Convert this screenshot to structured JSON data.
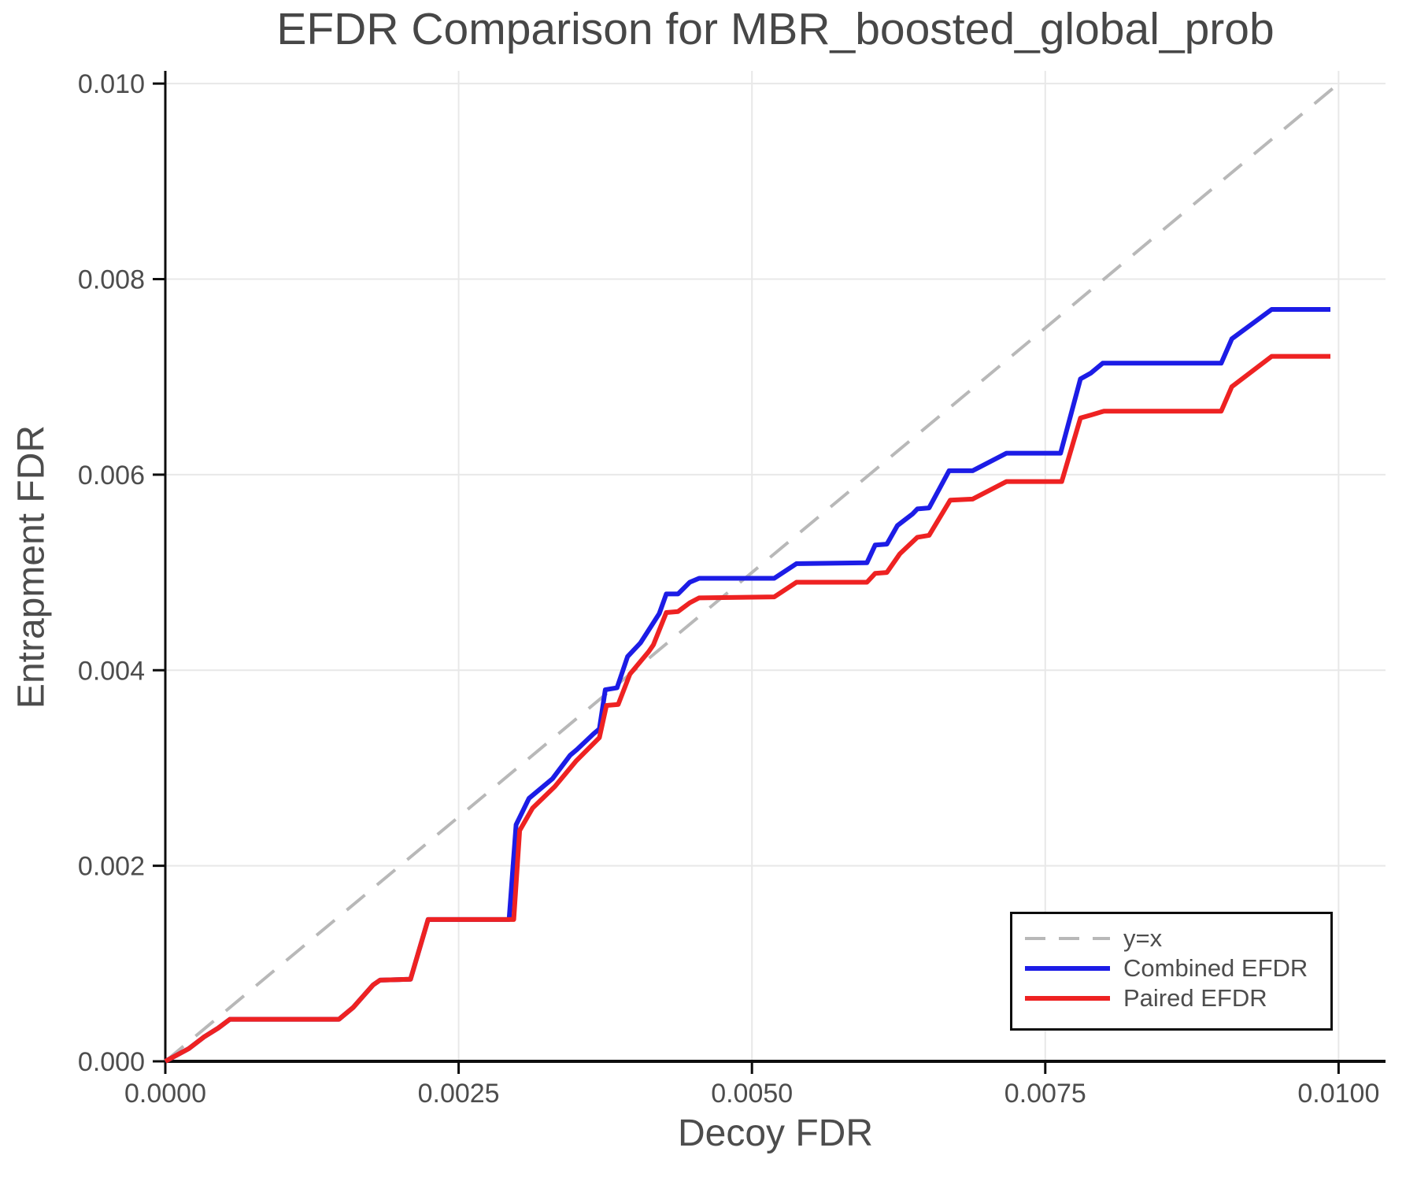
{
  "figure": {
    "title": "EFDR Comparison for MBR_boosted_global_prob",
    "x_axis_label": "Decoy FDR",
    "y_axis_label": "Entrapment FDR"
  },
  "colors": {
    "combined_efdr": "#1c1ce6",
    "paired_efdr": "#ee2222",
    "identity_line": "#b8b8b8",
    "grid": "#e8e8e8",
    "axis": "#0d0d0d",
    "text": "#4d4d4d"
  },
  "legend": {
    "entries": [
      {
        "label": "y=x",
        "color": "#b8b8b8",
        "style": "dashed"
      },
      {
        "label": "Combined EFDR",
        "color": "#1c1ce6",
        "style": "solid"
      },
      {
        "label": "Paired EFDR",
        "color": "#ee2222",
        "style": "solid"
      }
    ]
  },
  "chart_data": {
    "type": "line",
    "title": "EFDR Comparison for MBR_boosted_global_prob",
    "xlabel": "Decoy FDR",
    "ylabel": "Entrapment FDR",
    "xlim": [
      0,
      0.0104
    ],
    "ylim": [
      0,
      0.01013
    ],
    "x_ticks": [
      0.0,
      0.0025,
      0.005,
      0.0075,
      0.01
    ],
    "x_tick_labels": [
      "0.0000",
      "0.0025",
      "0.0050",
      "0.0075",
      "0.0100"
    ],
    "y_ticks": [
      0.0,
      0.002,
      0.004,
      0.006,
      0.008,
      0.01
    ],
    "y_tick_labels": [
      "0.000",
      "0.002",
      "0.004",
      "0.006",
      "0.008",
      "0.010"
    ],
    "grid": true,
    "legend_position": "lower right",
    "identity_line": {
      "name": "y=x",
      "dashed": true,
      "color": "#b8b8b8",
      "points": [
        [
          0.0,
          0.0
        ],
        [
          0.00999,
          0.00999
        ]
      ]
    },
    "series": [
      {
        "name": "Combined EFDR",
        "color": "#1c1ce6",
        "points": [
          [
            0.0,
            0.0
          ],
          [
            0.0002,
            0.00013
          ],
          [
            0.00033,
            0.00025
          ],
          [
            0.00045,
            0.00034
          ],
          [
            0.00055,
            0.00043
          ],
          [
            0.00148,
            0.00043
          ],
          [
            0.0016,
            0.00055
          ],
          [
            0.00177,
            0.00078
          ],
          [
            0.00183,
            0.00083
          ],
          [
            0.00209,
            0.00084
          ],
          [
            0.00224,
            0.00145
          ],
          [
            0.00293,
            0.00145
          ],
          [
            0.00299,
            0.00242
          ],
          [
            0.0031,
            0.00269
          ],
          [
            0.0033,
            0.00289
          ],
          [
            0.00345,
            0.00313
          ],
          [
            0.00351,
            0.00319
          ],
          [
            0.00365,
            0.00335
          ],
          [
            0.0037,
            0.0034
          ],
          [
            0.00375,
            0.0038
          ],
          [
            0.00385,
            0.00382
          ],
          [
            0.00394,
            0.00414
          ],
          [
            0.00405,
            0.00428
          ],
          [
            0.00421,
            0.00458
          ],
          [
            0.00427,
            0.00478
          ],
          [
            0.00437,
            0.00478
          ],
          [
            0.00447,
            0.0049
          ],
          [
            0.00455,
            0.00494
          ],
          [
            0.00519,
            0.00494
          ],
          [
            0.00538,
            0.00509
          ],
          [
            0.00598,
            0.0051
          ],
          [
            0.00605,
            0.00528
          ],
          [
            0.00615,
            0.00529
          ],
          [
            0.00624,
            0.00548
          ],
          [
            0.00637,
            0.0056
          ],
          [
            0.00641,
            0.00565
          ],
          [
            0.00651,
            0.00566
          ],
          [
            0.00668,
            0.00604
          ],
          [
            0.00688,
            0.00604
          ],
          [
            0.00717,
            0.00622
          ],
          [
            0.00763,
            0.00622
          ],
          [
            0.0078,
            0.00698
          ],
          [
            0.00789,
            0.00704
          ],
          [
            0.00799,
            0.00714
          ],
          [
            0.009,
            0.00714
          ],
          [
            0.00909,
            0.00739
          ],
          [
            0.00943,
            0.00769
          ],
          [
            0.00993,
            0.00769
          ]
        ]
      },
      {
        "name": "Paired EFDR",
        "color": "#ee2222",
        "points": [
          [
            0.0,
            0.0
          ],
          [
            0.0002,
            0.00013
          ],
          [
            0.00033,
            0.00025
          ],
          [
            0.00045,
            0.00034
          ],
          [
            0.00055,
            0.00043
          ],
          [
            0.00148,
            0.00043
          ],
          [
            0.0016,
            0.00055
          ],
          [
            0.00177,
            0.00078
          ],
          [
            0.00183,
            0.00083
          ],
          [
            0.00209,
            0.00084
          ],
          [
            0.00224,
            0.00145
          ],
          [
            0.00297,
            0.00145
          ],
          [
            0.00302,
            0.00236
          ],
          [
            0.00313,
            0.00259
          ],
          [
            0.00332,
            0.00281
          ],
          [
            0.0035,
            0.00307
          ],
          [
            0.0037,
            0.00331
          ],
          [
            0.00376,
            0.00364
          ],
          [
            0.00386,
            0.00365
          ],
          [
            0.00396,
            0.00396
          ],
          [
            0.00412,
            0.00419
          ],
          [
            0.00416,
            0.00426
          ],
          [
            0.00427,
            0.00459
          ],
          [
            0.00437,
            0.0046
          ],
          [
            0.00447,
            0.00469
          ],
          [
            0.00455,
            0.00474
          ],
          [
            0.00519,
            0.00475
          ],
          [
            0.00538,
            0.0049
          ],
          [
            0.00598,
            0.0049
          ],
          [
            0.00605,
            0.00499
          ],
          [
            0.00615,
            0.005
          ],
          [
            0.00626,
            0.00519
          ],
          [
            0.00641,
            0.00536
          ],
          [
            0.00651,
            0.00538
          ],
          [
            0.00669,
            0.00574
          ],
          [
            0.00688,
            0.00575
          ],
          [
            0.00717,
            0.00593
          ],
          [
            0.00764,
            0.00593
          ],
          [
            0.0078,
            0.00658
          ],
          [
            0.00789,
            0.00661
          ],
          [
            0.008,
            0.00665
          ],
          [
            0.009,
            0.00665
          ],
          [
            0.00909,
            0.0069
          ],
          [
            0.00943,
            0.00721
          ],
          [
            0.00993,
            0.00721
          ]
        ]
      }
    ]
  }
}
